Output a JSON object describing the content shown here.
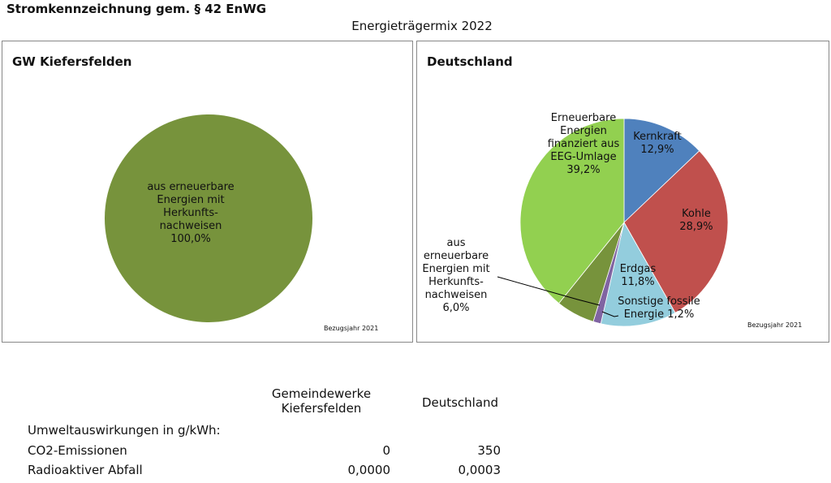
{
  "header": {
    "title": "Stromkennzeichnung gem. § 42 EnWG",
    "mix_title": "Energieträgermix 2022"
  },
  "chart_data": [
    {
      "type": "pie",
      "title": "GW Kiefersfelden",
      "reference_year": "Bezugsjahr 2021",
      "slices": [
        {
          "label": [
            "aus erneuerbare",
            "Energien mit",
            "Herkunfts-",
            "nachweisen",
            "100,0%"
          ],
          "value": 100.0,
          "color": "#77933c"
        }
      ]
    },
    {
      "type": "pie",
      "title": "Deutschland",
      "reference_year": "Bezugsjahr 2021",
      "slices": [
        {
          "label": [
            "Kernkraft",
            "12,9%"
          ],
          "value": 12.9,
          "color": "#4f81bd"
        },
        {
          "label": [
            "Kohle",
            "28,9%"
          ],
          "value": 28.9,
          "color": "#c0504d"
        },
        {
          "label": [
            "Erdgas",
            "11,8%"
          ],
          "value": 11.8,
          "color": "#93cddd"
        },
        {
          "label": [
            "Sonstige fossile",
            "Energie 1,2%"
          ],
          "value": 1.2,
          "color": "#8064a2"
        },
        {
          "label": [
            "aus",
            "erneuerbare",
            "Energien mit",
            "Herkunfts-",
            "nachweisen",
            "6,0%"
          ],
          "value": 6.0,
          "color": "#77933c"
        },
        {
          "label": [
            "Erneuerbare",
            "Energien",
            "finanziert aus",
            "EEG-Umlage",
            "39,2%"
          ],
          "value": 39.2,
          "color": "#92d050"
        }
      ]
    }
  ],
  "impact_table": {
    "col1_header": [
      "Gemeindewerke",
      "Kiefersfelden"
    ],
    "col2_header": "Deutschland",
    "section_label": "Umweltauswirkungen in g/kWh:",
    "rows": [
      {
        "label": "CO2-Emissionen",
        "v1": "0",
        "v2": "350"
      },
      {
        "label": "Radioaktiver Abfall",
        "v1": "0,0000",
        "v2": "0,0003"
      }
    ]
  }
}
